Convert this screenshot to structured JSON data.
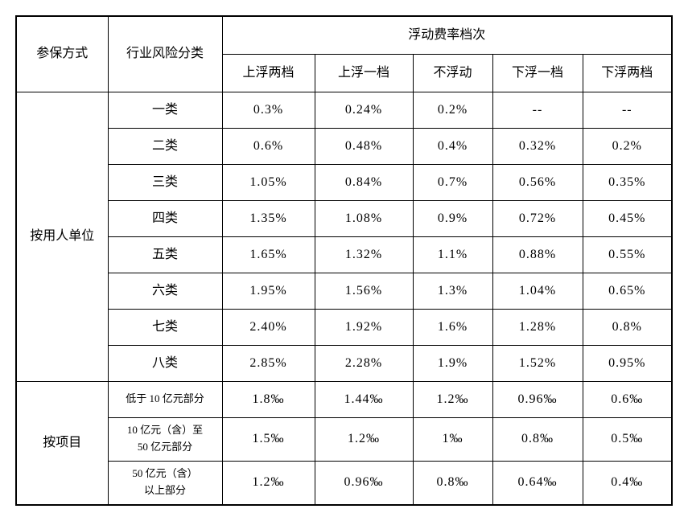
{
  "table": {
    "header": {
      "method_col": "参保方式",
      "risk_col": "行业风险分类",
      "group": "浮动费率档次",
      "tiers": [
        "上浮两档",
        "上浮一档",
        "不浮动",
        "下浮一档",
        "下浮两档"
      ]
    },
    "sections": [
      {
        "method": "按用人单位",
        "rows": [
          {
            "category": "一类",
            "values": [
              "0.3%",
              "0.24%",
              "0.2%",
              "--",
              "--"
            ]
          },
          {
            "category": "二类",
            "values": [
              "0.6%",
              "0.48%",
              "0.4%",
              "0.32%",
              "0.2%"
            ]
          },
          {
            "category": "三类",
            "values": [
              "1.05%",
              "0.84%",
              "0.7%",
              "0.56%",
              "0.35%"
            ]
          },
          {
            "category": "四类",
            "values": [
              "1.35%",
              "1.08%",
              "0.9%",
              "0.72%",
              "0.45%"
            ]
          },
          {
            "category": "五类",
            "values": [
              "1.65%",
              "1.32%",
              "1.1%",
              "0.88%",
              "0.55%"
            ]
          },
          {
            "category": "六类",
            "values": [
              "1.95%",
              "1.56%",
              "1.3%",
              "1.04%",
              "0.65%"
            ]
          },
          {
            "category": "七类",
            "values": [
              "2.40%",
              "1.92%",
              "1.6%",
              "1.28%",
              "0.8%"
            ]
          },
          {
            "category": "八类",
            "values": [
              "2.85%",
              "2.28%",
              "1.9%",
              "1.52%",
              "0.95%"
            ]
          }
        ]
      },
      {
        "method": "按项目",
        "rows": [
          {
            "category": "低于 10 亿元部分",
            "values": [
              "1.8‰",
              "1.44‰",
              "1.2‰",
              "0.96‰",
              "0.6‰"
            ]
          },
          {
            "category": "10 亿元（含）至\n50 亿元部分",
            "values": [
              "1.5‰",
              "1.2‰",
              "1‰",
              "0.8‰",
              "0.5‰"
            ]
          },
          {
            "category": "50 亿元（含）\n以上部分",
            "values": [
              "1.2‰",
              "0.96‰",
              "0.8‰",
              "0.64‰",
              "0.4‰"
            ]
          }
        ]
      }
    ]
  },
  "colors": {
    "border": "#000000",
    "text": "#000000",
    "background": "#ffffff"
  }
}
